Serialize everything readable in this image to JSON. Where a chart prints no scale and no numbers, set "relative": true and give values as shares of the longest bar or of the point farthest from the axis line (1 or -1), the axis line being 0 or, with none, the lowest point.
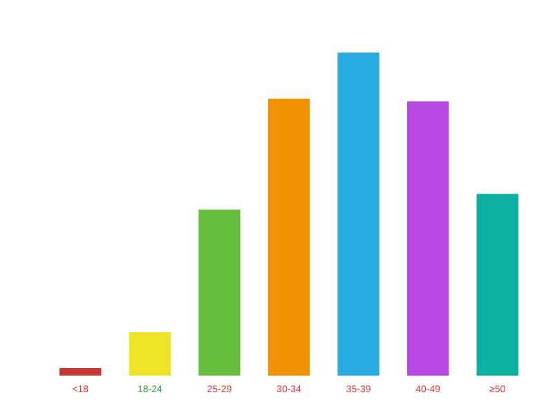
{
  "chart_data": {
    "type": "bar",
    "relative": true,
    "categories": [
      "<18",
      "18-24",
      "25-29",
      "30-34",
      "35-39",
      "40-49",
      "≥50"
    ],
    "values": [
      0.024,
      0.135,
      0.514,
      0.857,
      1,
      0.849,
      0.563
    ],
    "colors": [
      "#c43a33",
      "#f0e429",
      "#66bf3c",
      "#f09200",
      "#29abe2",
      "#b848e3",
      "#0bb0a0"
    ],
    "grid": false,
    "legend": false
  }
}
